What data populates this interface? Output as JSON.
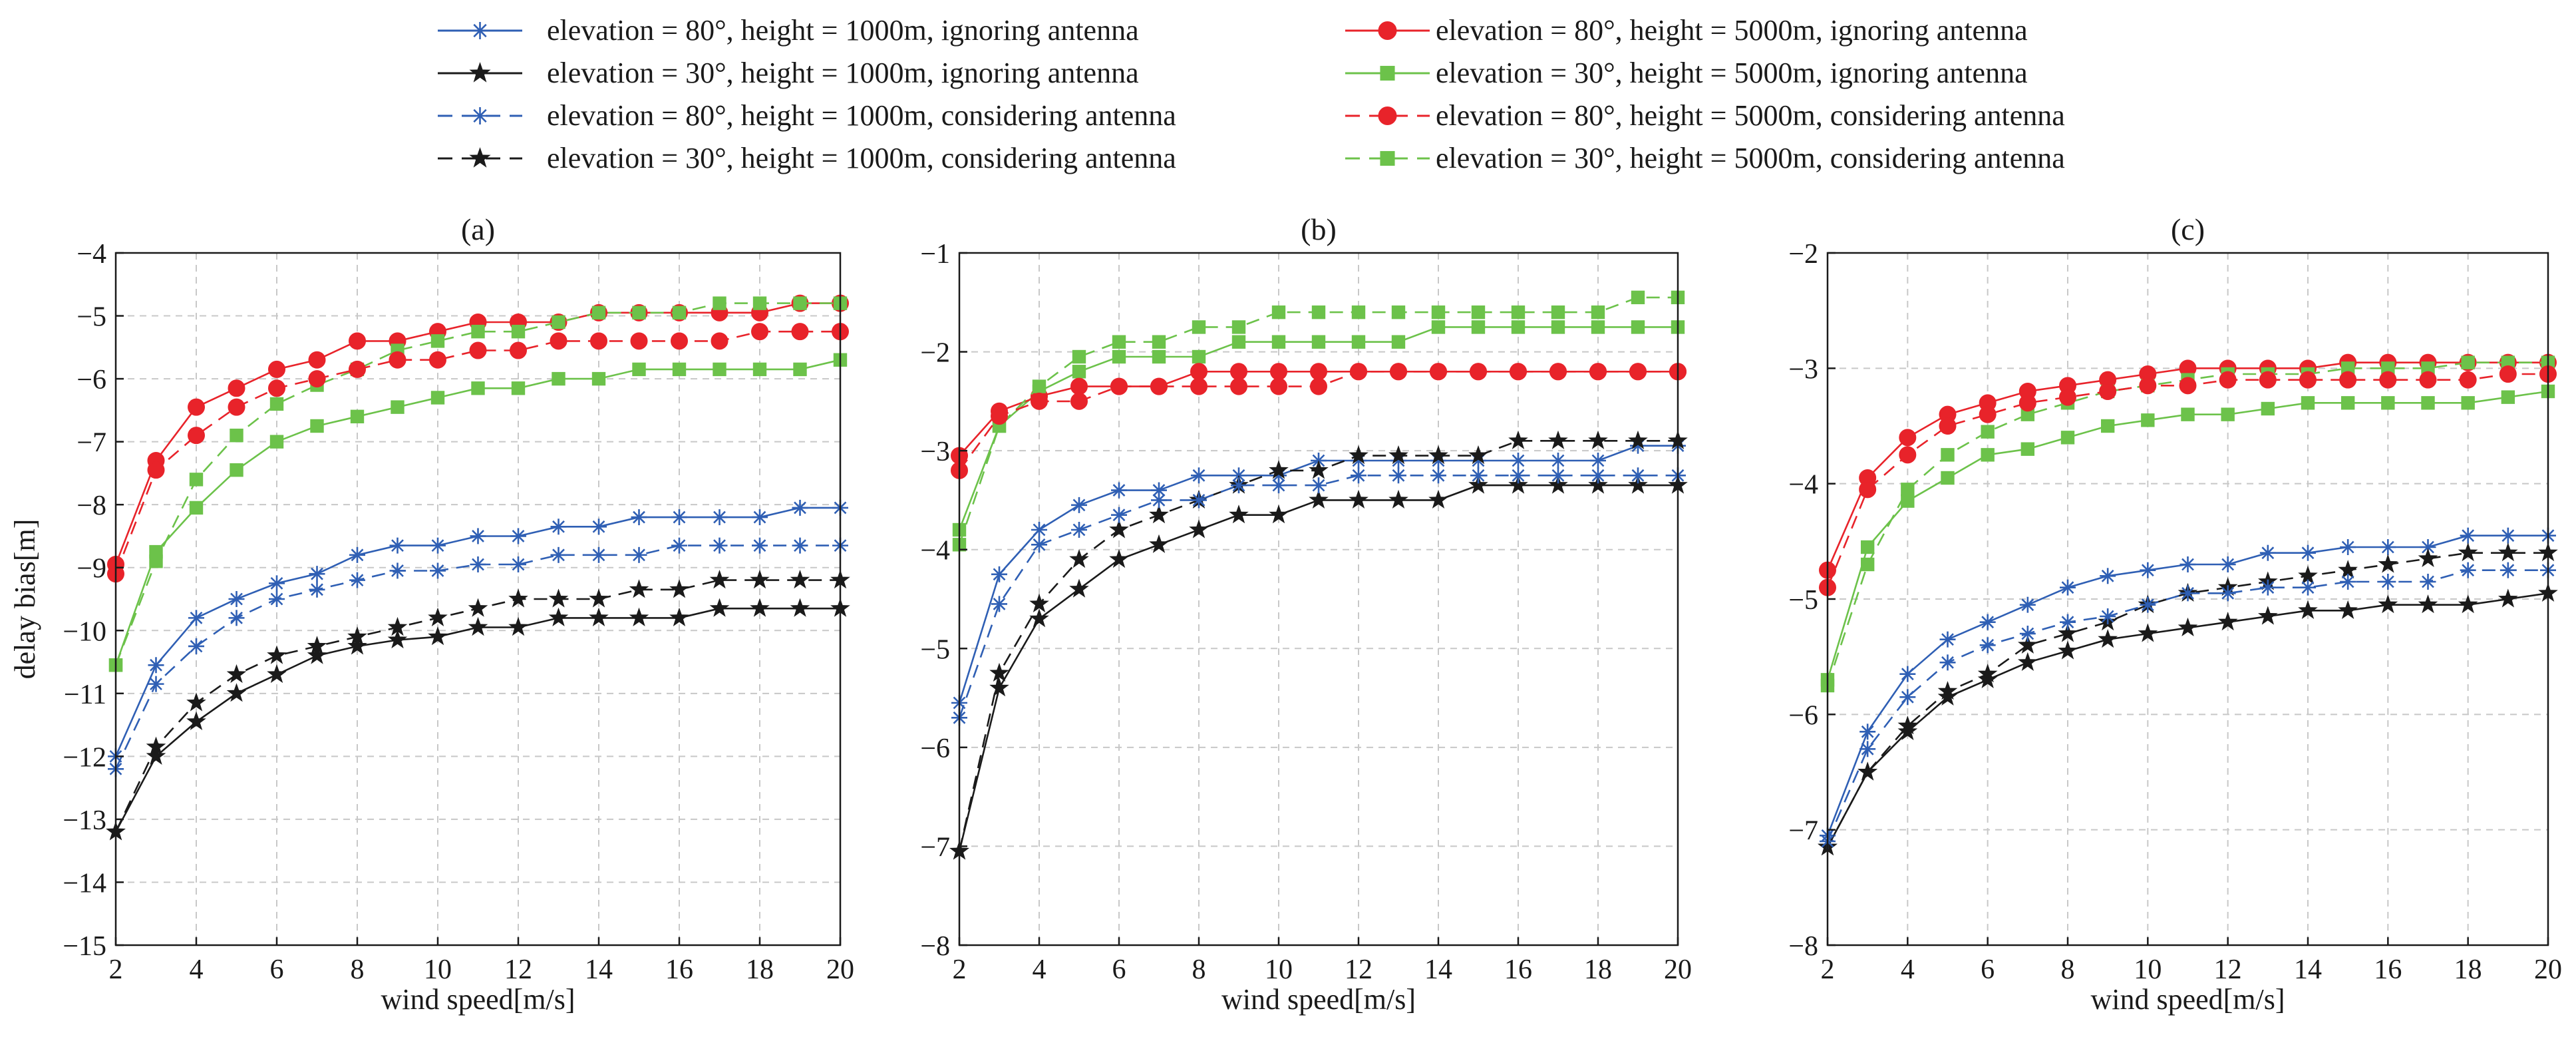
{
  "legend": {
    "items": [
      {
        "label": "elevation = 80°, height = 1000m, ignoring antenna",
        "color": "#2f5fb4",
        "marker": "asterisk",
        "dash": "solid"
      },
      {
        "label": "elevation = 30°, height = 1000m, ignoring antenna",
        "color": "#1a1a1a",
        "marker": "star",
        "dash": "solid"
      },
      {
        "label": "elevation = 80°, height = 1000m, considering antenna",
        "color": "#2f5fb4",
        "marker": "asterisk",
        "dash": "dashed"
      },
      {
        "label": "elevation = 30°, height = 1000m, considering antenna",
        "color": "#1a1a1a",
        "marker": "star",
        "dash": "dashed"
      },
      {
        "label": "elevation = 80°, height = 5000m, ignoring antenna",
        "color": "#e8232a",
        "marker": "circle",
        "dash": "solid"
      },
      {
        "label": "elevation = 30°, height = 5000m, ignoring antenna",
        "color": "#6cc24a",
        "marker": "square",
        "dash": "solid"
      },
      {
        "label": "elevation = 80°, height = 5000m, considering antenna",
        "color": "#e8232a",
        "marker": "circle",
        "dash": "dashed"
      },
      {
        "label": "elevation = 30°, height = 5000m, considering antenna",
        "color": "#6cc24a",
        "marker": "square",
        "dash": "dashed"
      }
    ]
  },
  "chart_data": [
    {
      "type": "line",
      "title": "(a)",
      "xlabel": "wind speed[m/s]",
      "ylabel": "delay bias[m]",
      "xlim": [
        2,
        20
      ],
      "ylim": [
        -15,
        -4
      ],
      "xticks": [
        2,
        4,
        6,
        8,
        10,
        12,
        14,
        16,
        18,
        20
      ],
      "yticks": [
        -15,
        -14,
        -13,
        -12,
        -11,
        -10,
        -9,
        -8,
        -7,
        -6,
        -5,
        -4
      ],
      "grid": true,
      "x": [
        2,
        3,
        4,
        5,
        6,
        7,
        8,
        9,
        10,
        11,
        12,
        13,
        14,
        15,
        16,
        17,
        18,
        19,
        20
      ],
      "series": [
        {
          "name": "elevation = 80°, height = 1000m, ignoring antenna",
          "values": [
            -12.0,
            -10.55,
            -9.8,
            -9.5,
            -9.25,
            -9.1,
            -8.8,
            -8.65,
            -8.65,
            -8.5,
            -8.5,
            -8.35,
            -8.35,
            -8.2,
            -8.2,
            -8.2,
            -8.2,
            -8.05,
            -8.05
          ]
        },
        {
          "name": "elevation = 30°, height = 1000m, ignoring antenna",
          "values": [
            -13.2,
            -12.0,
            -11.45,
            -11.0,
            -10.7,
            -10.4,
            -10.25,
            -10.15,
            -10.1,
            -9.95,
            -9.95,
            -9.8,
            -9.8,
            -9.8,
            -9.8,
            -9.65,
            -9.65,
            -9.65,
            -9.65
          ]
        },
        {
          "name": "elevation = 80°, height = 1000m, considering antenna",
          "values": [
            -12.2,
            -10.85,
            -10.25,
            -9.8,
            -9.5,
            -9.35,
            -9.2,
            -9.05,
            -9.05,
            -8.95,
            -8.95,
            -8.8,
            -8.8,
            -8.8,
            -8.65,
            -8.65,
            -8.65,
            -8.65,
            -8.65
          ]
        },
        {
          "name": "elevation = 30°, height = 1000m, considering antenna",
          "values": [
            -13.2,
            -11.85,
            -11.15,
            -10.7,
            -10.4,
            -10.25,
            -10.1,
            -9.95,
            -9.8,
            -9.65,
            -9.5,
            -9.5,
            -9.5,
            -9.35,
            -9.35,
            -9.2,
            -9.2,
            -9.2,
            -9.2
          ]
        },
        {
          "name": "elevation = 80°, height = 5000m, ignoring antenna",
          "values": [
            -8.95,
            -7.3,
            -6.45,
            -6.15,
            -5.85,
            -5.7,
            -5.4,
            -5.4,
            -5.25,
            -5.1,
            -5.1,
            -5.1,
            -4.95,
            -4.95,
            -4.95,
            -4.95,
            -4.95,
            -4.8,
            -4.8
          ]
        },
        {
          "name": "elevation = 30°, height = 5000m, ignoring antenna",
          "values": [
            -10.55,
            -8.75,
            -8.05,
            -7.45,
            -7.0,
            -6.75,
            -6.6,
            -6.45,
            -6.3,
            -6.15,
            -6.15,
            -6.0,
            -6.0,
            -5.85,
            -5.85,
            -5.85,
            -5.85,
            -5.85,
            -5.7
          ]
        },
        {
          "name": "elevation = 80°, height = 5000m, considering antenna",
          "values": [
            -9.1,
            -7.45,
            -6.9,
            -6.45,
            -6.15,
            -6.0,
            -5.85,
            -5.7,
            -5.7,
            -5.55,
            -5.55,
            -5.4,
            -5.4,
            -5.4,
            -5.4,
            -5.4,
            -5.25,
            -5.25,
            -5.25
          ]
        },
        {
          "name": "elevation = 30°, height = 5000m, considering antenna",
          "values": [
            -10.55,
            -8.9,
            -7.6,
            -6.9,
            -6.4,
            -6.1,
            -5.85,
            -5.55,
            -5.4,
            -5.25,
            -5.25,
            -5.1,
            -4.95,
            -4.95,
            -4.95,
            -4.8,
            -4.8,
            -4.8,
            -4.8
          ]
        }
      ]
    },
    {
      "type": "line",
      "title": "(b)",
      "xlabel": "wind speed[m/s]",
      "ylabel": "",
      "xlim": [
        2,
        20
      ],
      "ylim": [
        -8,
        -1
      ],
      "xticks": [
        2,
        4,
        6,
        8,
        10,
        12,
        14,
        16,
        18,
        20
      ],
      "yticks": [
        -8,
        -7,
        -6,
        -5,
        -4,
        -3,
        -2,
        -1
      ],
      "grid": true,
      "x": [
        2,
        3,
        4,
        5,
        6,
        7,
        8,
        9,
        10,
        11,
        12,
        13,
        14,
        15,
        16,
        17,
        18,
        19,
        20
      ],
      "series": [
        {
          "name": "elevation = 80°, height = 1000m, ignoring antenna",
          "values": [
            -5.55,
            -4.25,
            -3.8,
            -3.55,
            -3.4,
            -3.4,
            -3.25,
            -3.25,
            -3.25,
            -3.1,
            -3.1,
            -3.1,
            -3.1,
            -3.1,
            -3.1,
            -3.1,
            -3.1,
            -2.95,
            -2.95
          ]
        },
        {
          "name": "elevation = 30°, height = 1000m, ignoring antenna",
          "values": [
            -7.05,
            -5.4,
            -4.7,
            -4.4,
            -4.1,
            -3.95,
            -3.8,
            -3.65,
            -3.65,
            -3.5,
            -3.5,
            -3.5,
            -3.5,
            -3.35,
            -3.35,
            -3.35,
            -3.35,
            -3.35,
            -3.35
          ]
        },
        {
          "name": "elevation = 80°, height = 1000m, considering antenna",
          "values": [
            -5.7,
            -4.55,
            -3.95,
            -3.8,
            -3.65,
            -3.5,
            -3.5,
            -3.35,
            -3.35,
            -3.35,
            -3.25,
            -3.25,
            -3.25,
            -3.25,
            -3.25,
            -3.25,
            -3.25,
            -3.25,
            -3.25
          ]
        },
        {
          "name": "elevation = 30°, height = 1000m, considering antenna",
          "values": [
            -7.05,
            -5.25,
            -4.55,
            -4.1,
            -3.8,
            -3.65,
            -3.5,
            -3.35,
            -3.2,
            -3.2,
            -3.05,
            -3.05,
            -3.05,
            -3.05,
            -2.9,
            -2.9,
            -2.9,
            -2.9,
            -2.9
          ]
        },
        {
          "name": "elevation = 80°, height = 5000m, ignoring antenna",
          "values": [
            -3.05,
            -2.6,
            -2.45,
            -2.35,
            -2.35,
            -2.35,
            -2.2,
            -2.2,
            -2.2,
            -2.2,
            -2.2,
            -2.2,
            -2.2,
            -2.2,
            -2.2,
            -2.2,
            -2.2,
            -2.2,
            -2.2
          ]
        },
        {
          "name": "elevation = 30°, height = 5000m, ignoring antenna",
          "values": [
            -3.8,
            -2.75,
            -2.4,
            -2.2,
            -2.05,
            -2.05,
            -2.05,
            -1.9,
            -1.9,
            -1.9,
            -1.9,
            -1.9,
            -1.75,
            -1.75,
            -1.75,
            -1.75,
            -1.75,
            -1.75,
            -1.75
          ]
        },
        {
          "name": "elevation = 80°, height = 5000m, considering antenna",
          "values": [
            -3.2,
            -2.65,
            -2.5,
            -2.5,
            -2.35,
            -2.35,
            -2.35,
            -2.35,
            -2.35,
            -2.35,
            -2.2,
            -2.2,
            -2.2,
            -2.2,
            -2.2,
            -2.2,
            -2.2,
            -2.2,
            -2.2
          ]
        },
        {
          "name": "elevation = 30°, height = 5000m, considering antenna",
          "values": [
            -3.95,
            -2.75,
            -2.35,
            -2.05,
            -1.9,
            -1.9,
            -1.75,
            -1.75,
            -1.6,
            -1.6,
            -1.6,
            -1.6,
            -1.6,
            -1.6,
            -1.6,
            -1.6,
            -1.6,
            -1.45,
            -1.45
          ]
        }
      ]
    },
    {
      "type": "line",
      "title": "(c)",
      "xlabel": "wind speed[m/s]",
      "ylabel": "",
      "xlim": [
        2,
        20
      ],
      "ylim": [
        -8,
        -2
      ],
      "xticks": [
        2,
        4,
        6,
        8,
        10,
        12,
        14,
        16,
        18,
        20
      ],
      "yticks": [
        -8,
        -7,
        -6,
        -5,
        -4,
        -3,
        -2
      ],
      "grid": true,
      "x": [
        2,
        3,
        4,
        5,
        6,
        7,
        8,
        9,
        10,
        11,
        12,
        13,
        14,
        15,
        16,
        17,
        18,
        19,
        20
      ],
      "series": [
        {
          "name": "elevation = 80°, height = 1000m, ignoring antenna",
          "values": [
            -7.05,
            -6.15,
            -5.65,
            -5.35,
            -5.2,
            -5.05,
            -4.9,
            -4.8,
            -4.75,
            -4.7,
            -4.7,
            -4.6,
            -4.6,
            -4.55,
            -4.55,
            -4.55,
            -4.45,
            -4.45,
            -4.45
          ]
        },
        {
          "name": "elevation = 30°, height = 1000m, ignoring antenna",
          "values": [
            -7.15,
            -6.5,
            -6.15,
            -5.85,
            -5.7,
            -5.55,
            -5.45,
            -5.35,
            -5.3,
            -5.25,
            -5.2,
            -5.15,
            -5.1,
            -5.1,
            -5.05,
            -5.05,
            -5.05,
            -5.0,
            -4.95
          ]
        },
        {
          "name": "elevation = 80°, height = 1000m, considering antenna",
          "values": [
            -7.1,
            -6.3,
            -5.85,
            -5.55,
            -5.4,
            -5.3,
            -5.2,
            -5.15,
            -5.05,
            -4.95,
            -4.95,
            -4.9,
            -4.9,
            -4.85,
            -4.85,
            -4.85,
            -4.75,
            -4.75,
            -4.75
          ]
        },
        {
          "name": "elevation = 30°, height = 1000m, considering antenna",
          "values": [
            -7.15,
            -6.5,
            -6.1,
            -5.8,
            -5.65,
            -5.4,
            -5.3,
            -5.2,
            -5.05,
            -4.95,
            -4.9,
            -4.85,
            -4.8,
            -4.75,
            -4.7,
            -4.65,
            -4.6,
            -4.6,
            -4.6
          ]
        },
        {
          "name": "elevation = 80°, height = 5000m, ignoring antenna",
          "values": [
            -4.75,
            -3.95,
            -3.6,
            -3.4,
            -3.3,
            -3.2,
            -3.15,
            -3.1,
            -3.05,
            -3.0,
            -3.0,
            -3.0,
            -3.0,
            -2.95,
            -2.95,
            -2.95,
            -2.95,
            -2.95,
            -2.95
          ]
        },
        {
          "name": "elevation = 30°, height = 5000m, ignoring antenna",
          "values": [
            -5.7,
            -4.55,
            -4.15,
            -3.95,
            -3.75,
            -3.7,
            -3.6,
            -3.5,
            -3.45,
            -3.4,
            -3.4,
            -3.35,
            -3.3,
            -3.3,
            -3.3,
            -3.3,
            -3.3,
            -3.25,
            -3.2
          ]
        },
        {
          "name": "elevation = 80°, height = 5000m, considering antenna",
          "values": [
            -4.9,
            -4.05,
            -3.75,
            -3.5,
            -3.4,
            -3.3,
            -3.25,
            -3.2,
            -3.15,
            -3.15,
            -3.1,
            -3.1,
            -3.1,
            -3.1,
            -3.1,
            -3.1,
            -3.1,
            -3.05,
            -3.05
          ]
        },
        {
          "name": "elevation = 30°, height = 5000m, considering antenna",
          "values": [
            -5.75,
            -4.7,
            -4.05,
            -3.75,
            -3.55,
            -3.4,
            -3.3,
            -3.2,
            -3.15,
            -3.1,
            -3.05,
            -3.05,
            -3.05,
            -3.0,
            -3.0,
            -3.0,
            -2.95,
            -2.95,
            -2.95
          ]
        }
      ]
    }
  ]
}
